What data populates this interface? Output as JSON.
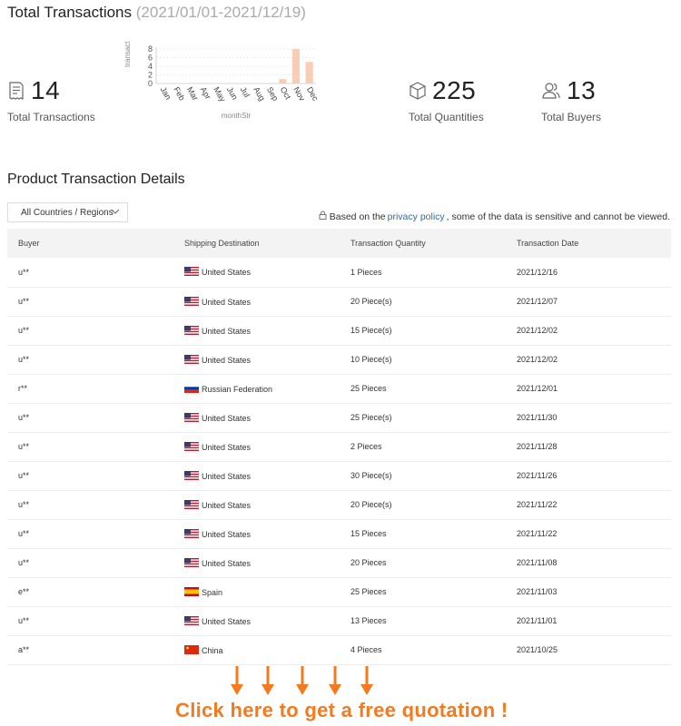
{
  "header": {
    "title": "Total Transactions",
    "date_range": "(2021/01/01-2021/12/19)"
  },
  "stats": {
    "transactions": {
      "value": "14",
      "label": "Total Transactions",
      "icon": "receipt-icon"
    },
    "quantities": {
      "value": "225",
      "label": "Total Quantities",
      "icon": "box-icon"
    },
    "buyers": {
      "value": "13",
      "label": "Total Buyers",
      "icon": "users-icon"
    }
  },
  "chart_data": {
    "type": "bar",
    "categories": [
      "Jan",
      "Feb",
      "Mar",
      "Apr",
      "May",
      "Jun",
      "Jul",
      "Aug",
      "Sep",
      "Oct",
      "Nov",
      "Dec"
    ],
    "values": [
      0,
      0,
      0,
      0,
      0,
      0,
      0,
      0,
      0,
      1,
      8,
      5
    ],
    "ylabel": "transact",
    "xlabel": "monthStr",
    "yticks": [
      0,
      2,
      4,
      6,
      8
    ],
    "ylim": [
      0,
      8
    ],
    "grid": true,
    "bar_color": "#f9cdb4"
  },
  "details": {
    "title": "Product Transaction Details",
    "filter_label": "All Countries / Regions",
    "notice_prefix": "Based on the",
    "notice_link": "privacy policy",
    "notice_suffix": ", some of the data is sensitive and cannot be viewed.",
    "columns": [
      "Buyer",
      "Shipping Destination",
      "Transaction Quantity",
      "Transaction Date"
    ],
    "rows": [
      {
        "buyer": "u**",
        "dest": "United States",
        "flag": "us",
        "qty": "1 Pieces",
        "date": "2021/12/16"
      },
      {
        "buyer": "u**",
        "dest": "United States",
        "flag": "us",
        "qty": "20 Piece(s)",
        "date": "2021/12/07"
      },
      {
        "buyer": "u**",
        "dest": "United States",
        "flag": "us",
        "qty": "15 Piece(s)",
        "date": "2021/12/02"
      },
      {
        "buyer": "u**",
        "dest": "United States",
        "flag": "us",
        "qty": "10 Piece(s)",
        "date": "2021/12/02"
      },
      {
        "buyer": "r**",
        "dest": "Russian Federation",
        "flag": "ru",
        "qty": "25 Pieces",
        "date": "2021/12/01"
      },
      {
        "buyer": "u**",
        "dest": "United States",
        "flag": "us",
        "qty": "25 Piece(s)",
        "date": "2021/11/30"
      },
      {
        "buyer": "u**",
        "dest": "United States",
        "flag": "us",
        "qty": "2 Pieces",
        "date": "2021/11/28"
      },
      {
        "buyer": "u**",
        "dest": "United States",
        "flag": "us",
        "qty": "30 Piece(s)",
        "date": "2021/11/26"
      },
      {
        "buyer": "u**",
        "dest": "United States",
        "flag": "us",
        "qty": "20 Piece(s)",
        "date": "2021/11/22"
      },
      {
        "buyer": "u**",
        "dest": "United States",
        "flag": "us",
        "qty": "15 Pieces",
        "date": "2021/11/22"
      },
      {
        "buyer": "u**",
        "dest": "United States",
        "flag": "us",
        "qty": "20 Pieces",
        "date": "2021/11/08"
      },
      {
        "buyer": "e**",
        "dest": "Spain",
        "flag": "es",
        "qty": "25 Pieces",
        "date": "2021/11/03"
      },
      {
        "buyer": "u**",
        "dest": "United States",
        "flag": "us",
        "qty": "13 Pieces",
        "date": "2021/11/01"
      },
      {
        "buyer": "a**",
        "dest": "China",
        "flag": "cn",
        "qty": "4 Pieces",
        "date": "2021/10/25"
      }
    ]
  },
  "cta": {
    "text": "Click here to get a free quotation !",
    "color": "#f47a1f"
  }
}
